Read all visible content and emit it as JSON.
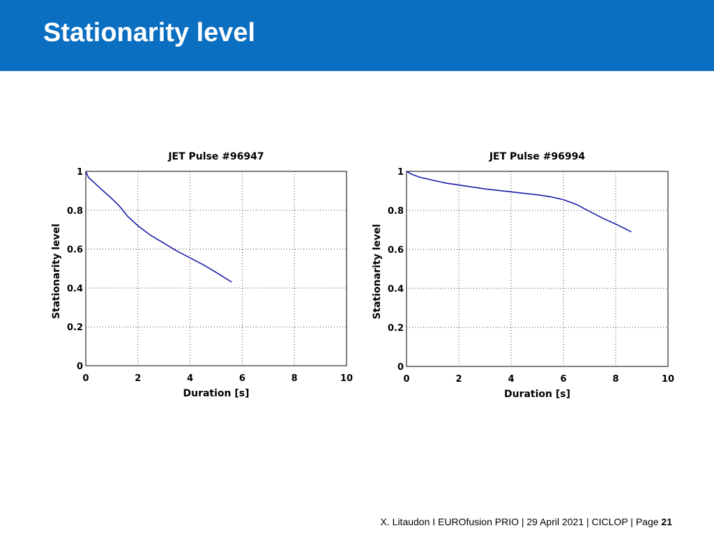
{
  "slide": {
    "title": "Stationarity level",
    "footer_text": "X. Litaudon I EUROfusion PRIO | 29 April  2021 | CICLOP | Page ",
    "page_number": "21"
  },
  "colors": {
    "header_bg": "#0b6fc1",
    "line": "#1a1aa8",
    "grid": "#333333"
  },
  "chart_data": [
    {
      "type": "line",
      "title": "JET Pulse #96947",
      "xlabel": "Duration [s]",
      "ylabel": "Stationarity level",
      "xlim": [
        0,
        10
      ],
      "ylim": [
        0,
        1
      ],
      "xticks": [
        "0",
        "2",
        "4",
        "6",
        "8",
        "10"
      ],
      "yticks": [
        "0",
        "0.2",
        "0.4",
        "0.6",
        "0.8",
        "1"
      ],
      "grid": true,
      "x": [
        0,
        0.1,
        0.5,
        1.0,
        1.3,
        1.6,
        2.0,
        2.5,
        3.0,
        3.5,
        4.0,
        4.5,
        5.0,
        5.3,
        5.6
      ],
      "y": [
        1.0,
        0.97,
        0.92,
        0.86,
        0.82,
        0.77,
        0.72,
        0.67,
        0.63,
        0.59,
        0.555,
        0.52,
        0.48,
        0.455,
        0.43
      ]
    },
    {
      "type": "line",
      "title": "JET Pulse #96994",
      "xlabel": "Duration [s]",
      "ylabel": "Stationarity level",
      "xlim": [
        0,
        10
      ],
      "ylim": [
        0,
        1
      ],
      "xticks": [
        "0",
        "2",
        "4",
        "6",
        "8",
        "10"
      ],
      "yticks": [
        "0",
        "0.2",
        "0.4",
        "0.6",
        "0.8",
        "1"
      ],
      "grid": true,
      "x": [
        0,
        0.2,
        0.5,
        1.0,
        1.5,
        2.0,
        3.0,
        4.0,
        5.0,
        5.5,
        6.0,
        6.5,
        7.0,
        7.5,
        8.0,
        8.6
      ],
      "y": [
        1.0,
        0.985,
        0.97,
        0.955,
        0.94,
        0.93,
        0.91,
        0.895,
        0.88,
        0.87,
        0.855,
        0.83,
        0.795,
        0.76,
        0.73,
        0.69
      ]
    }
  ]
}
